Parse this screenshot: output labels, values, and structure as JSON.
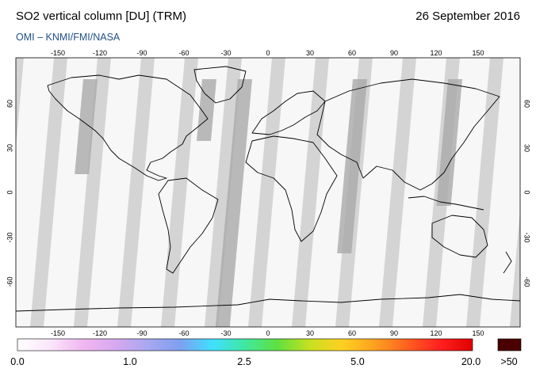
{
  "header": {
    "title": "SO2 vertical column [DU] (TRM)",
    "date": "26 September 2016",
    "credit": "OMI  –  KNMI/FMI/NASA"
  },
  "axes": {
    "lon_ticks": [
      "-150",
      "-120",
      "-90",
      "-60",
      "-30",
      "0",
      "30",
      "60",
      "90",
      "120",
      "150"
    ],
    "lat_ticks": [
      "60",
      "30",
      "0",
      "-30",
      "-60"
    ]
  },
  "colorbar": {
    "labels": [
      "0.0",
      "1.0",
      "2.5",
      "5.0",
      "20.0"
    ],
    "overflow_label": ">50",
    "overflow_color": "#4a0000",
    "colors": [
      "#ffffff",
      "#fbe6fb",
      "#f0b8f0",
      "#d8a8f0",
      "#a8a8f0",
      "#7f9ff0",
      "#3fe0ff",
      "#3fe8a0",
      "#5fe040",
      "#c8e020",
      "#ffd020",
      "#ffa020",
      "#ff6020",
      "#ff2020",
      "#e00000"
    ]
  },
  "map": {
    "background_color": "#d4d4d4",
    "dark_band_color": "#a9a9a9",
    "swath_color": "#f7f7f7",
    "coast_color": "#000000"
  }
}
